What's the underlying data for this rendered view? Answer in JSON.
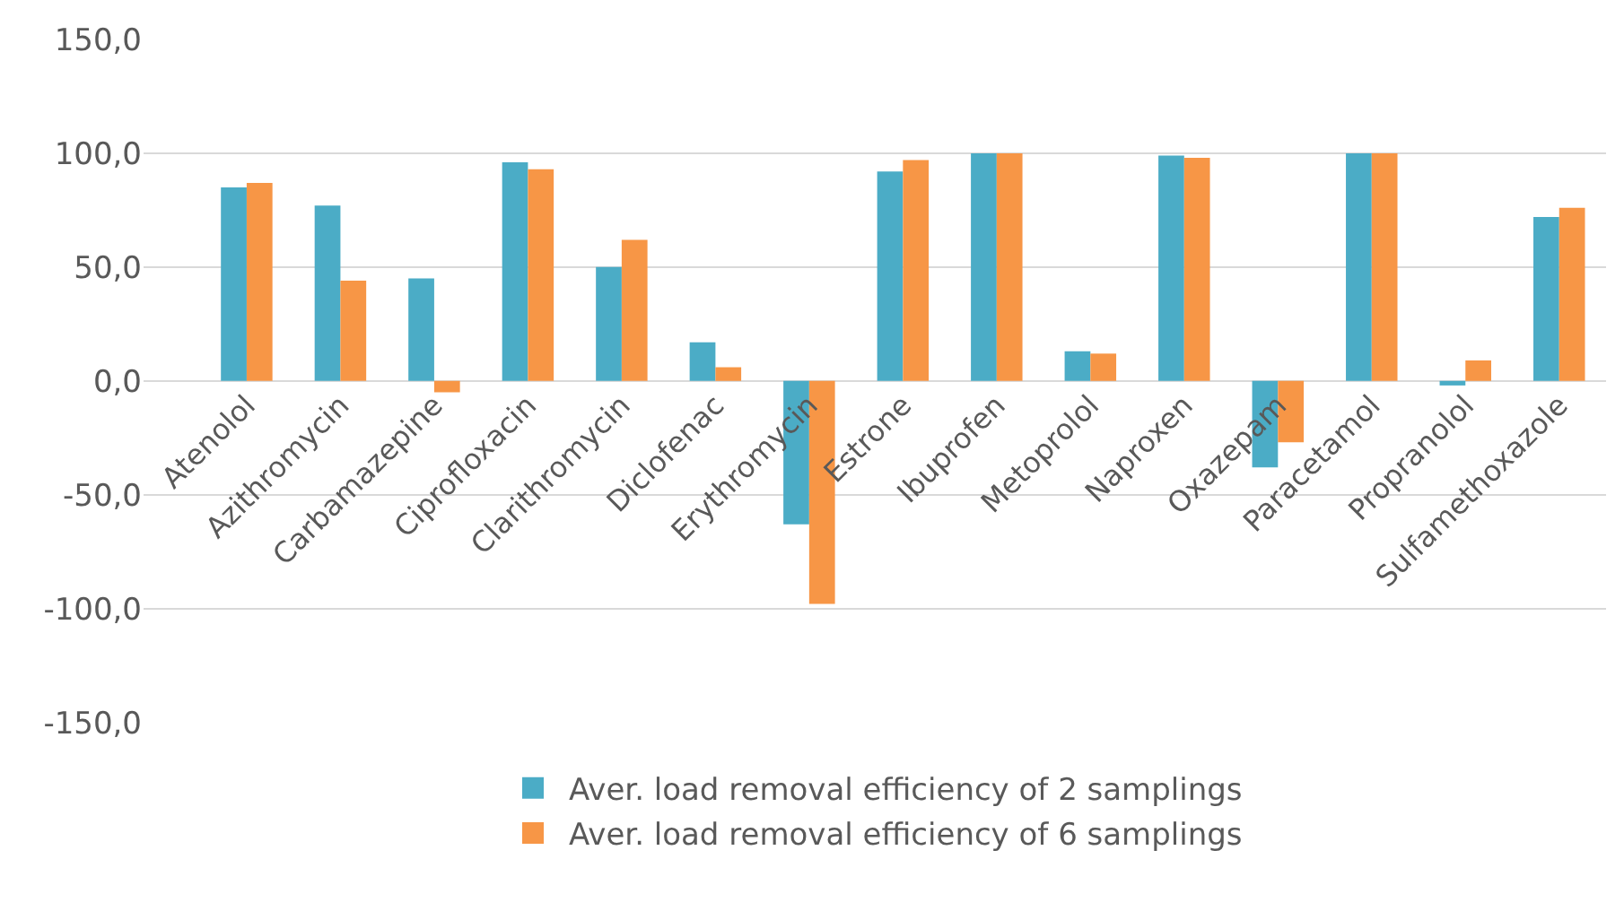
{
  "chart_data": {
    "type": "bar",
    "categories": [
      "Atenolol",
      "Azithromycin",
      "Carbamazepine",
      "Ciprofloxacin",
      "Clarithromycin",
      "Diclofenac",
      "Erythromycin",
      "Estrone",
      "Ibuprofen",
      "Metoprolol",
      "Naproxen",
      "Oxazepam",
      "Paracetamol",
      "Propranolol",
      "Sulfamethoxazole"
    ],
    "series": [
      {
        "name": "Aver. load removal efficiency of 2 samplings",
        "color": "#4bacc6",
        "values": [
          85,
          77,
          45,
          96,
          50,
          17,
          -63,
          92,
          100,
          13,
          99,
          -38,
          100,
          -2,
          72
        ]
      },
      {
        "name": "Aver. load removal efficiency of 6 samplings",
        "color": "#f79646",
        "values": [
          87,
          44,
          -5,
          93,
          62,
          6,
          -98,
          97,
          100,
          12,
          98,
          -27,
          100,
          9,
          76
        ]
      }
    ],
    "ylim": [
      -150,
      150
    ],
    "yticks": [
      {
        "value": -150,
        "label": "-150,0"
      },
      {
        "value": -100,
        "label": "-100,0"
      },
      {
        "value": -50,
        "label": "-50,0"
      },
      {
        "value": 0,
        "label": "0,0"
      },
      {
        "value": 50,
        "label": "50,0"
      },
      {
        "value": 100,
        "label": "100,0"
      },
      {
        "value": 150,
        "label": "150,0"
      }
    ],
    "grid": "y",
    "legend": "bottom"
  }
}
